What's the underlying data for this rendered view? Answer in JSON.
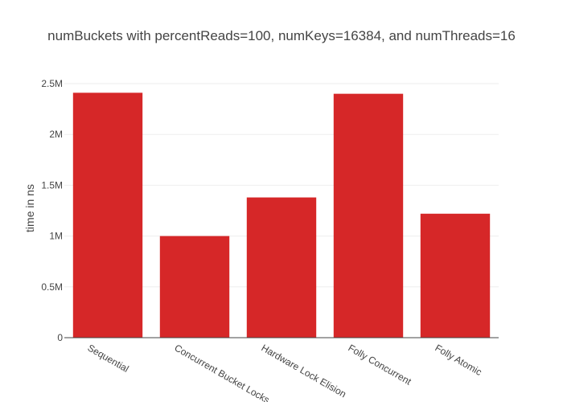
{
  "chart_data": {
    "type": "bar",
    "title": "numBuckets with percentReads=100, numKeys=16384, and numThreads=16",
    "xlabel": "",
    "ylabel": "time in ns",
    "categories": [
      "Sequential",
      "Concurrent Bucket Locks",
      "Hardware Lock Elision",
      "Folly Concurrent",
      "Folly Atomic"
    ],
    "values": [
      2410000,
      1000000,
      1380000,
      2400000,
      1220000
    ],
    "ylim": [
      0,
      2500000
    ],
    "yticks": [
      0,
      500000,
      1000000,
      1500000,
      2000000,
      2500000
    ],
    "ytick_labels": [
      "0",
      "0.5M",
      "1M",
      "1.5M",
      "2M",
      "2.5M"
    ],
    "grid": true,
    "legend": "none",
    "bar_color": "#d62728"
  }
}
